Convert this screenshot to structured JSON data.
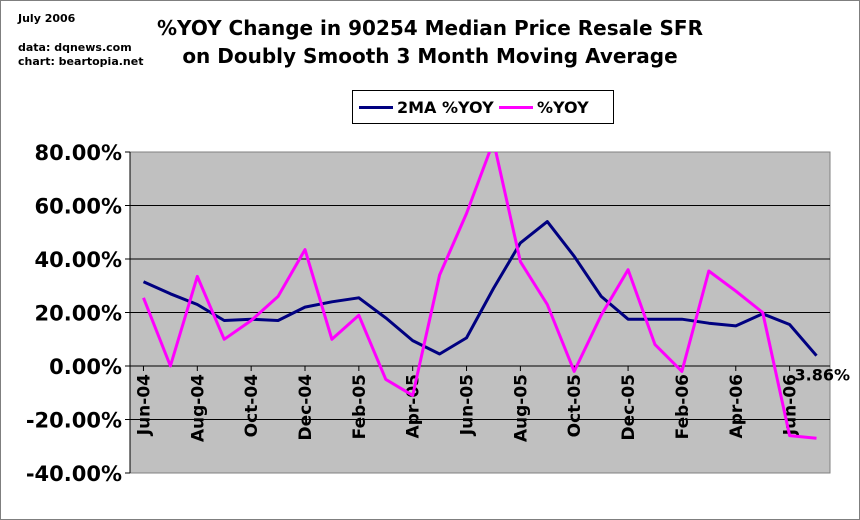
{
  "header": {
    "date_note": "July 2006",
    "source_line": "data: dqnews.com",
    "credit_line": "chart: beartopia.net"
  },
  "chart_data": {
    "type": "line",
    "title_line1": "%YOY Change in 90254 Median Price Resale SFR",
    "title_line2": "on Doubly Smooth 3 Month Moving Average",
    "categories": [
      "Jun-04",
      "Jul-04",
      "Aug-04",
      "Sep-04",
      "Oct-04",
      "Nov-04",
      "Dec-04",
      "Jan-05",
      "Feb-05",
      "Mar-05",
      "Apr-05",
      "May-05",
      "Jun-05",
      "Jul-05",
      "Aug-05",
      "Sep-05",
      "Oct-05",
      "Nov-05",
      "Dec-05",
      "Jan-06",
      "Feb-06",
      "Mar-06",
      "Apr-06",
      "May-06",
      "Jun-06",
      "Jul-06"
    ],
    "x_tick_labels": [
      "Jun-04",
      "Aug-04",
      "Oct-04",
      "Dec-04",
      "Feb-05",
      "Apr-05",
      "Jun-05",
      "Aug-05",
      "Oct-05",
      "Dec-05",
      "Feb-06",
      "Apr-06",
      "Jun-06"
    ],
    "y_tick_labels": [
      "80.00%",
      "60.00%",
      "40.00%",
      "20.00%",
      "0.00%",
      "-20.00%",
      "-40.00%"
    ],
    "ylim": [
      -40,
      80
    ],
    "y_step": 20,
    "grid": true,
    "legend_position": "top-center",
    "series": [
      {
        "name": "2MA %YOY",
        "color": "#000080",
        "values": [
          31.5,
          27,
          23,
          17,
          17.5,
          17,
          22,
          24,
          25.5,
          18,
          9.5,
          4.5,
          10.5,
          29,
          46,
          54,
          41,
          26,
          17.5,
          17.5,
          17.5,
          16,
          15,
          19.5,
          15.5,
          3.86
        ]
      },
      {
        "name": "%YOY",
        "color": "#ff00ff",
        "values": [
          25.5,
          0,
          33.5,
          10,
          17,
          26,
          43.5,
          10,
          19,
          -5,
          -11,
          34,
          57,
          84,
          39,
          23,
          -2,
          19,
          36,
          8,
          -2,
          35.5,
          28,
          20,
          -26,
          -27
        ]
      }
    ],
    "annotations": [
      {
        "text": "3.86%",
        "category": "Jul-06",
        "value": 3.86
      }
    ]
  }
}
